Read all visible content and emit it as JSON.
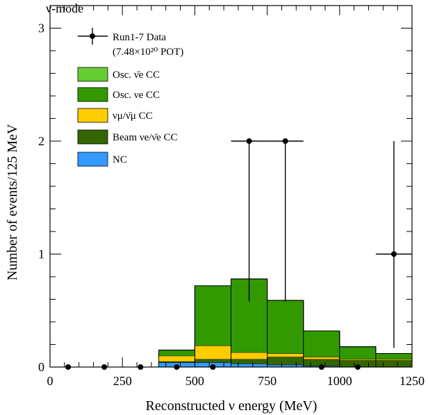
{
  "chart_data": {
    "type": "bar",
    "stacked": true,
    "title": "ν-mode",
    "xlabel": "Reconstructed ν energy (MeV)",
    "ylabel": "Number of events/125 MeV",
    "xlim": [
      0,
      1250
    ],
    "ylim": [
      0,
      3.2
    ],
    "x_ticks": [
      "0",
      "250",
      "500",
      "750",
      "1000",
      "1250"
    ],
    "y_ticks": [
      "0",
      "1",
      "2",
      "3"
    ],
    "bin_edges": [
      375,
      500,
      625,
      750,
      875,
      1000,
      1125,
      1250
    ],
    "series": [
      {
        "name": "NC",
        "color": "#3399ff",
        "values": [
          0.04,
          0.04,
          0.03,
          0.02,
          0.01,
          0.0,
          0.0
        ]
      },
      {
        "name": "Beam νe/ν̄e CC",
        "color": "#336600",
        "values": [
          0.01,
          0.03,
          0.04,
          0.07,
          0.06,
          0.06,
          0.06
        ]
      },
      {
        "name": "νμ/ν̄μ CC",
        "color": "#ffcc00",
        "values": [
          0.05,
          0.12,
          0.06,
          0.03,
          0.02,
          0.01,
          0.01
        ]
      },
      {
        "name": "Osc. νe CC",
        "color": "#339900",
        "values": [
          0.05,
          0.53,
          0.65,
          0.47,
          0.23,
          0.11,
          0.05
        ]
      },
      {
        "name": "Osc. ν̄e CC",
        "color": "#66cc33",
        "values": [
          0.0,
          0.0,
          0.0,
          0.0,
          0.0,
          0.0,
          0.0
        ]
      }
    ],
    "data_points": {
      "name": "Run1-7 Data",
      "x": [
        62.5,
        187.5,
        312.5,
        437.5,
        562.5,
        687.5,
        812.5,
        937.5,
        1062.5,
        1187.5
      ],
      "y": [
        0,
        0,
        0,
        0,
        0,
        2,
        2,
        0,
        0,
        1
      ],
      "err_low": [
        0,
        0,
        0,
        0,
        0,
        1.42,
        1.42,
        0,
        0,
        0.83
      ],
      "err_high": [
        0,
        0,
        0,
        0,
        0,
        0,
        0,
        0,
        0,
        1.0
      ],
      "x_half_width": [
        0,
        0,
        0,
        0,
        0,
        62.5,
        62.5,
        0,
        0,
        62.5
      ]
    },
    "legend": {
      "placement": "top-left",
      "data_label": "Run1-7 Data",
      "data_sublabel": "(7.48×10²⁰ POT)",
      "entries": [
        {
          "name": "Osc. ν̄e CC",
          "color": "#66cc33"
        },
        {
          "name": "Osc. νe CC",
          "color": "#339900"
        },
        {
          "name": "νμ/ν̄μ CC",
          "color": "#ffcc00"
        },
        {
          "name": "Beam νe/ν̄e CC",
          "color": "#336600"
        },
        {
          "name": "NC",
          "color": "#3399ff"
        }
      ]
    }
  }
}
